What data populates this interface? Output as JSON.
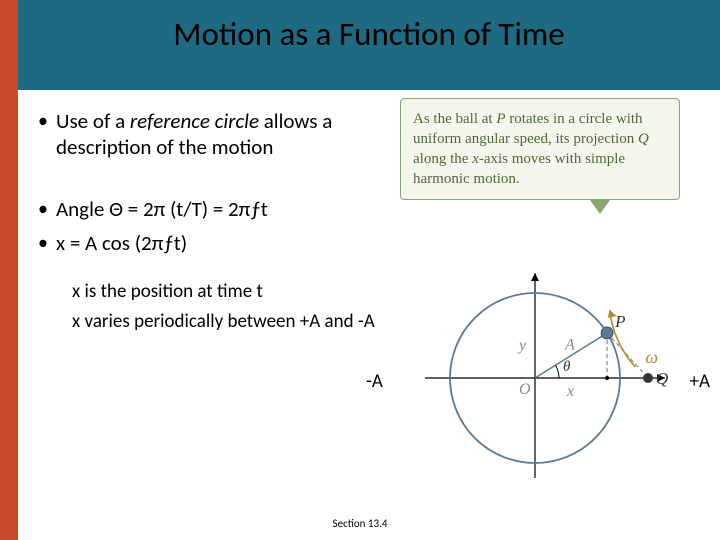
{
  "colors": {
    "accent_bar": "#c94a29",
    "header_bg": "#1f6a83",
    "callout_border": "#8aa66f",
    "callout_bg": "#f3f7ee",
    "callout_text": "#4f6a3a",
    "figure_stroke": "#5a7a96",
    "omega_color": "#b88a2e",
    "grid_gray": "#888888"
  },
  "title": {
    "text": "Motion as a Function of Time",
    "fontsize": 33
  },
  "bullets": {
    "b1_pre": "Use of a ",
    "b1_emph": "reference circle",
    "b1_post": " allows a description of the motion",
    "b2": "Angle Θ = 2π (t/T) = 2πƒt",
    "b3": "x = A cos (2πƒt)",
    "s1": "x  is the position at time t",
    "s2": "x  varies periodically between +A and -A"
  },
  "callout": {
    "line1": "As the ball at ",
    "P": "P",
    "line2": " rotates in a circle with uniform angular speed, its projection ",
    "Q": "Q",
    "line3": " along the ",
    "xaxis": "x",
    "line4": "-axis moves with simple harmonic motion.",
    "fontsize": 15
  },
  "figure": {
    "minusA": "-A",
    "plusA": "+A",
    "omega": "ω",
    "P": "P",
    "Q": "Q",
    "O": "O",
    "A": "A",
    "x": "x",
    "y": "y",
    "theta": "θ",
    "radius": 85,
    "angle_deg": 32
  },
  "footer": "Section 13.4"
}
